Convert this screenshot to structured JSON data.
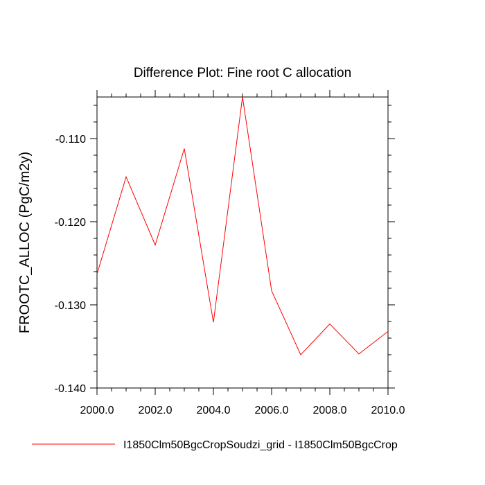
{
  "chart_data": {
    "type": "line",
    "title": "Difference Plot: Fine root C allocation",
    "xlabel": "",
    "ylabel": "FROOTC_ALLOC  (PgC/m2y)",
    "xlim": [
      2000,
      2010
    ],
    "ylim": [
      -0.14,
      -0.105
    ],
    "x_ticks": [
      "2000.0",
      "2002.0",
      "2004.0",
      "2006.0",
      "2008.0",
      "2010.0"
    ],
    "y_ticks": [
      "-0.110",
      "-0.120",
      "-0.130",
      "-0.140"
    ],
    "grid": false,
    "legend_position": "bottom",
    "series": [
      {
        "name": "I1850Clm50BgcCropSoudzi_grid - I1850Clm50BgcCrop",
        "color": "#ff0000",
        "x": [
          2000,
          2001,
          2002,
          2003,
          2004,
          2005,
          2006,
          2007,
          2008,
          2009,
          2010
        ],
        "y": [
          -0.1263,
          -0.1146,
          -0.1228,
          -0.1112,
          -0.1321,
          -0.105,
          -0.1283,
          -0.136,
          -0.1323,
          -0.1359,
          -0.1332
        ]
      }
    ]
  }
}
